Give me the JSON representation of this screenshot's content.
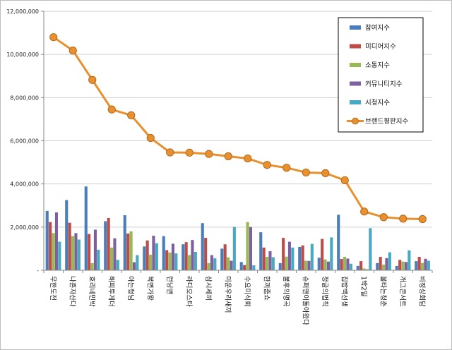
{
  "chart_data": {
    "type": "bar",
    "title": "",
    "xlabel": "",
    "ylabel": "",
    "ylim": [
      0,
      12000000
    ],
    "yticks": [
      "-",
      "2,000,000",
      "4,000,000",
      "6,000,000",
      "8,000,000",
      "10,000,000",
      "12,000,000"
    ],
    "grid": true,
    "legend_position": "top-right",
    "categories": [
      "무한도전",
      "나혼자산다",
      "효리네민박",
      "해피투게더",
      "아는형님",
      "복면가왕",
      "런닝맨",
      "라디오스타",
      "삼시세끼",
      "미운우리새끼",
      "수요미식회",
      "한끼줍쇼",
      "불후의명곡",
      "슈퍼맨이돌아왔다",
      "정글의법칙",
      "집밥백선생",
      "1박2일",
      "불타는청춘",
      "개그콘서트",
      "비정상회담"
    ],
    "series": [
      {
        "name": "참여지수",
        "type": "bar",
        "color": "#4a7ebb",
        "values": [
          2750000,
          3250000,
          3880000,
          2270000,
          2550000,
          1100000,
          1580000,
          1200000,
          2180000,
          1000000,
          380000,
          1760000,
          330000,
          1080000,
          580000,
          2570000,
          200000,
          330000,
          200000,
          420000
        ]
      },
      {
        "name": "미디어지수",
        "type": "bar",
        "color": "#be4b48",
        "values": [
          2230000,
          2200000,
          1680000,
          2420000,
          1700000,
          1380000,
          930000,
          1300000,
          1500000,
          1200000,
          240000,
          1050000,
          1500000,
          1150000,
          1450000,
          520000,
          420000,
          620000,
          480000,
          620000
        ]
      },
      {
        "name": "소통지수",
        "type": "bar",
        "color": "#98b954",
        "values": [
          1720000,
          1580000,
          330000,
          1050000,
          1800000,
          720000,
          820000,
          700000,
          330000,
          600000,
          2230000,
          620000,
          630000,
          440000,
          500000,
          620000,
          80000,
          260000,
          400000,
          340000
        ]
      },
      {
        "name": "커뮤니티지수",
        "type": "bar",
        "color": "#7d60a0",
        "values": [
          2680000,
          1720000,
          1880000,
          1480000,
          370000,
          1600000,
          1230000,
          1400000,
          700000,
          440000,
          2000000,
          880000,
          1320000,
          430000,
          400000,
          540000,
          40000,
          560000,
          380000,
          530000
        ]
      },
      {
        "name": "시청지수",
        "type": "bar",
        "color": "#46aac5",
        "values": [
          1320000,
          1420000,
          950000,
          480000,
          700000,
          1250000,
          780000,
          850000,
          550000,
          2000000,
          230000,
          600000,
          1050000,
          1220000,
          1520000,
          300000,
          1950000,
          830000,
          920000,
          440000
        ]
      },
      {
        "name": "브랜드평판지수",
        "type": "line",
        "color": "#e8902e",
        "values": [
          10800000,
          10180000,
          8820000,
          7450000,
          7180000,
          6130000,
          5460000,
          5450000,
          5390000,
          5280000,
          5180000,
          4880000,
          4750000,
          4530000,
          4500000,
          4170000,
          2720000,
          2460000,
          2390000,
          2370000
        ]
      }
    ]
  }
}
